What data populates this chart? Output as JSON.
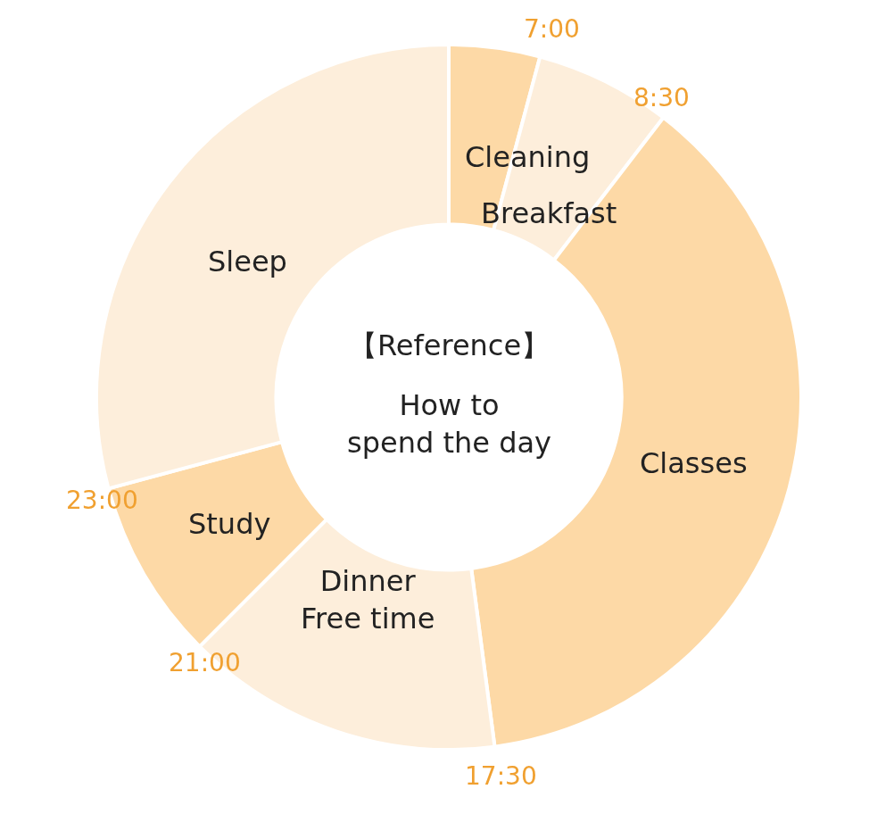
{
  "chart_data": {
    "type": "donut",
    "title": "【Reference】",
    "subtitle": "How to\nspend the day",
    "categories": [
      "Cleaning",
      "Breakfast",
      "Classes",
      "Dinner\nFree time",
      "Study",
      "Sleep"
    ],
    "values": [
      4.17,
      6.25,
      37.5,
      14.58,
      8.33,
      29.17
    ],
    "colors": [
      "#fdd9a6",
      "#fdeedb",
      "#fdd9a6",
      "#fdeedb",
      "#fdd9a6",
      "#fdeedb"
    ],
    "annotations": [
      "7:00",
      "8:30",
      "17:30",
      "21:00",
      "23:00"
    ],
    "legend": false
  }
}
